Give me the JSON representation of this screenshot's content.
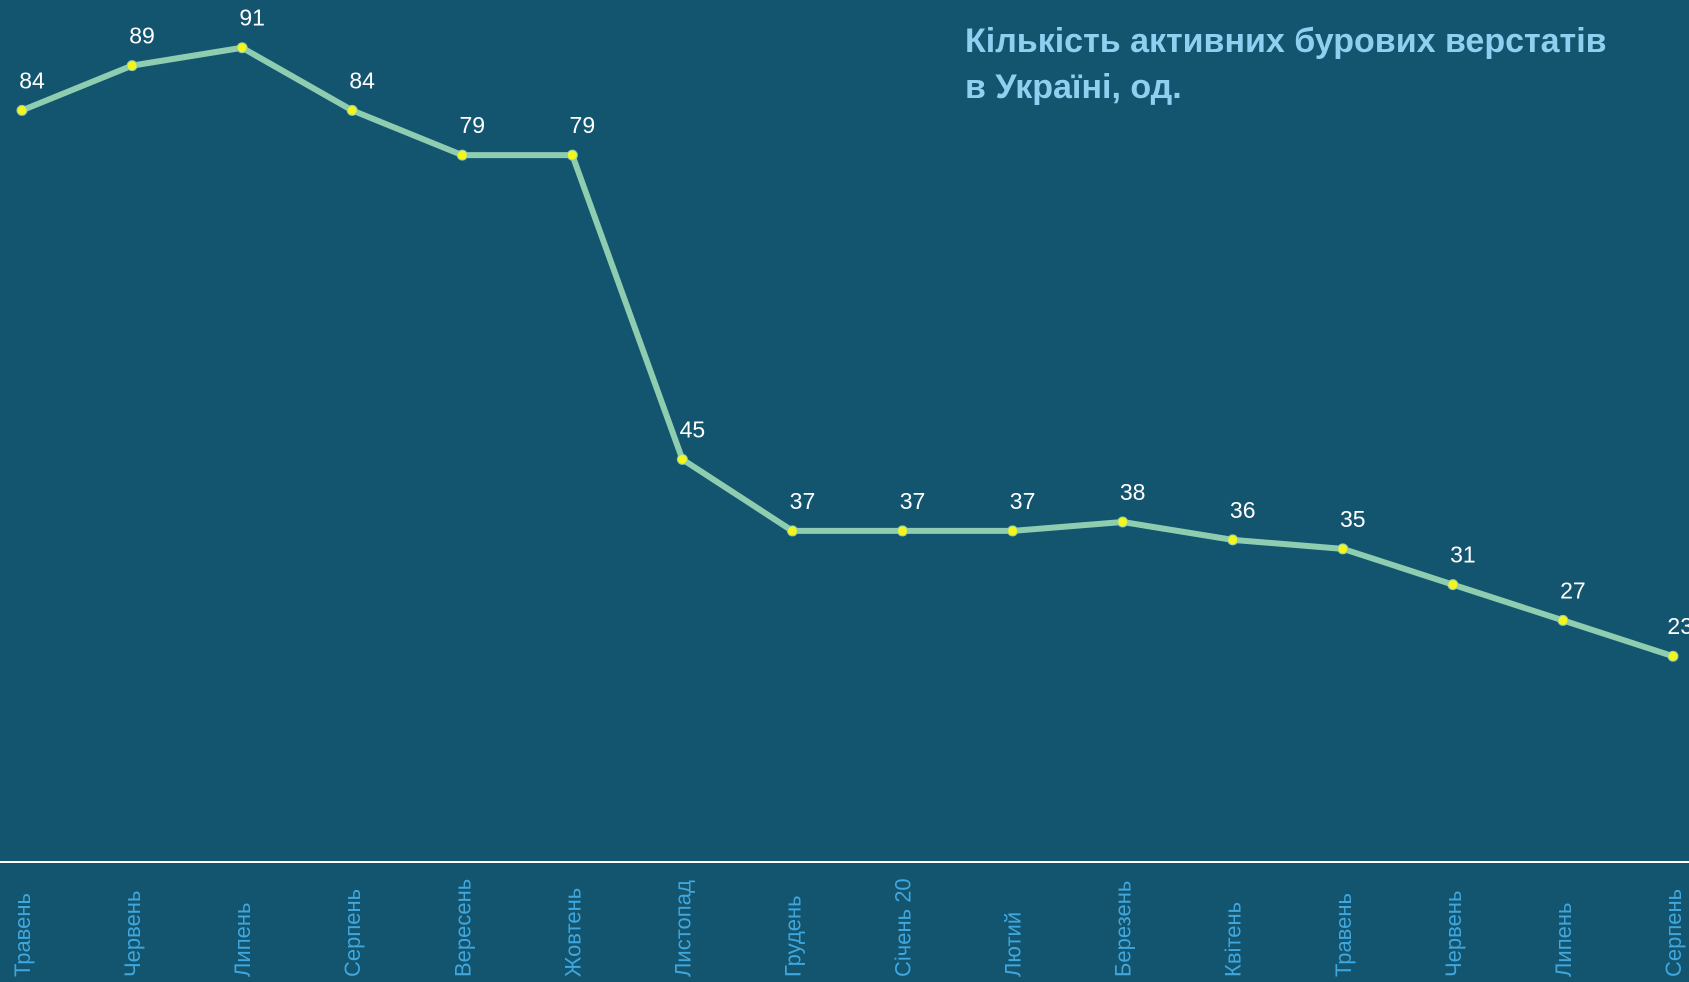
{
  "chart_data": {
    "type": "line",
    "title": "Кількість активних бурових верстатів\nв Україні, од.",
    "categories": [
      "Травень",
      "Червень",
      "Липень",
      "Серпень",
      "Вересень",
      "Жовтень",
      "Листопад",
      "Грудень",
      "Січень 20",
      "Лютий",
      "Березень",
      "Квітень",
      "Травень",
      "Червень",
      "Липень",
      "Серпень"
    ],
    "series": [
      {
        "name": "Кількість активних бурових верстатів",
        "color": "#8ecdb0",
        "marker_color": "#f5f51e",
        "values": [
          84,
          89,
          91,
          84,
          79,
          79,
          45,
          37,
          37,
          37,
          38,
          36,
          35,
          31,
          27,
          23
        ]
      }
    ],
    "ylim": [
      0,
      96
    ]
  }
}
